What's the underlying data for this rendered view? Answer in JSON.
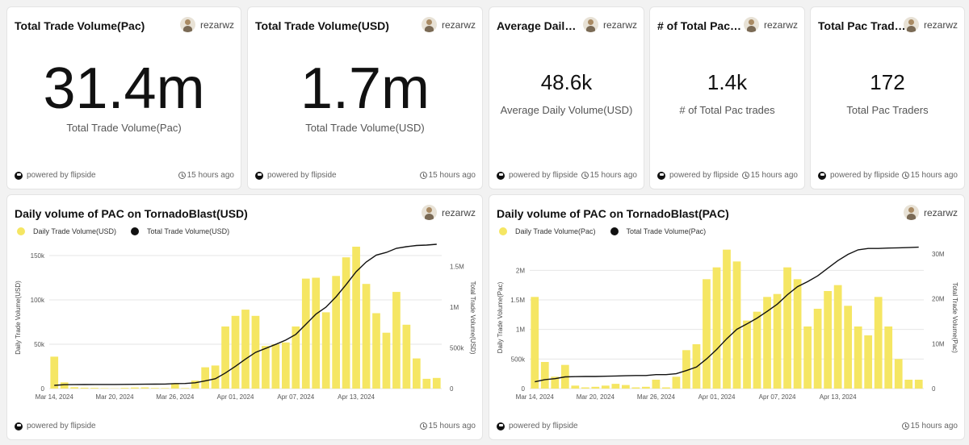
{
  "author": "rezarwz",
  "powered_by": "powered by flipside",
  "updated": "15 hours ago",
  "kpis": [
    {
      "title": "Total Trade Volume(Pac)",
      "value": "31.4m",
      "label": "Total Trade Volume(Pac)"
    },
    {
      "title": "Total Trade Volume(USD)",
      "value": "1.7m",
      "label": "Total Trade Volume(USD)"
    },
    {
      "title": "Average Daily Volume(USD)",
      "value": "48.6k",
      "label": "Average Daily Volume(USD)"
    },
    {
      "title": "# of Total Pac trades",
      "value": "1.4k",
      "label": "# of Total Pac trades"
    },
    {
      "title": "Total Pac Traders",
      "value": "172",
      "label": "Total Pac Traders"
    }
  ],
  "charts": {
    "usd": {
      "title": "Daily volume of PAC on TornadoBlast(USD)",
      "legend_bar": "Daily Trade Volume(USD)",
      "legend_line": "Total Trade Volume(USD)"
    },
    "pac": {
      "title": "Daily volume of PAC on TornadoBlast(PAC)",
      "legend_bar": "Daily Trade Volume(Pac)",
      "legend_line": "Total Trade Volume(Pac)"
    }
  },
  "colors": {
    "bar": "#f5e663",
    "line": "#111111"
  },
  "chart_data": [
    {
      "type": "bar",
      "title": "Daily volume of PAC on TornadoBlast(USD)",
      "xlabel": "",
      "ylabel": "Daily Trade Volume(USD)",
      "y2label": "Total Trade Volume(USD)",
      "ylim": [
        0,
        160000
      ],
      "y2lim": [
        0,
        1740000
      ],
      "yticks": [
        "0",
        "50k",
        "100k",
        "150k"
      ],
      "y2ticks": [
        "0",
        "500k",
        "1M",
        "1.5M"
      ],
      "xticks": [
        "Mar 14, 2024",
        "Mar 20, 2024",
        "Mar 26, 2024",
        "Apr 01, 2024",
        "Apr 07, 2024",
        "Apr 13, 2024"
      ],
      "xtick_index": [
        0,
        6,
        12,
        18,
        24,
        30
      ],
      "series": [
        {
          "name": "Daily Trade Volume(USD)",
          "kind": "bar",
          "values": [
            36000,
            7000,
            1500,
            1000,
            800,
            500,
            300,
            800,
            1200,
            1300,
            700,
            600,
            6000,
            600,
            9000,
            24000,
            26000,
            70000,
            82000,
            89000,
            82000,
            48000,
            50000,
            52000,
            70000,
            124000,
            125000,
            86000,
            127000,
            148000,
            160000,
            118000,
            85000,
            63000,
            109000,
            72000,
            34000,
            11000,
            12000
          ]
        },
        {
          "name": "Total Trade Volume(USD)",
          "kind": "line",
          "values": [
            40000,
            47000,
            48000,
            49000,
            50000,
            50000,
            50000,
            51000,
            52000,
            53000,
            54000,
            55000,
            61000,
            62000,
            71000,
            95000,
            121000,
            191000,
            273000,
            362000,
            444000,
            492000,
            542000,
            594000,
            664000,
            788000,
            913000,
            999000,
            1126000,
            1274000,
            1434000,
            1552000,
            1637000,
            1670000,
            1720000,
            1740000,
            1755000,
            1760000,
            1770000
          ]
        }
      ]
    },
    {
      "type": "bar",
      "title": "Daily volume of PAC on TornadoBlast(PAC)",
      "xlabel": "",
      "ylabel": "Daily Trade Volume(Pac)",
      "y2label": "Total Trade Volume(Pac)",
      "ylim": [
        0,
        2400000
      ],
      "y2lim": [
        0,
        31600000
      ],
      "yticks": [
        "0",
        "500k",
        "1M",
        "1.5M",
        "2M"
      ],
      "y2ticks": [
        "0",
        "10M",
        "20M",
        "30M"
      ],
      "xticks": [
        "Mar 14, 2024",
        "Mar 20, 2024",
        "Mar 26, 2024",
        "Apr 01, 2024",
        "Apr 07, 2024",
        "Apr 13, 2024"
      ],
      "xtick_index": [
        0,
        6,
        12,
        18,
        24,
        30
      ],
      "series": [
        {
          "name": "Daily Trade Volume(Pac)",
          "kind": "bar",
          "values": [
            1550000,
            450000,
            200000,
            400000,
            50000,
            20000,
            30000,
            50000,
            80000,
            60000,
            20000,
            30000,
            150000,
            20000,
            200000,
            650000,
            750000,
            1850000,
            2050000,
            2350000,
            2150000,
            1150000,
            1300000,
            1550000,
            1600000,
            2050000,
            1850000,
            1050000,
            1350000,
            1650000,
            1750000,
            1400000,
            1050000,
            900000,
            1550000,
            1050000,
            500000,
            150000,
            150000
          ]
        },
        {
          "name": "Total Trade Volume(Pac)",
          "kind": "line",
          "values": [
            1500000,
            2000000,
            2200000,
            2600000,
            2650000,
            2700000,
            2700000,
            2750000,
            2800000,
            2850000,
            2900000,
            2900000,
            3100000,
            3100000,
            3300000,
            4000000,
            4800000,
            6600000,
            8700000,
            11100000,
            13200000,
            14400000,
            15700000,
            17200000,
            18800000,
            20900000,
            22700000,
            23800000,
            25100000,
            26800000,
            28500000,
            29900000,
            30900000,
            31200000,
            31200000,
            31300000,
            31350000,
            31400000,
            31500000
          ]
        }
      ]
    }
  ]
}
